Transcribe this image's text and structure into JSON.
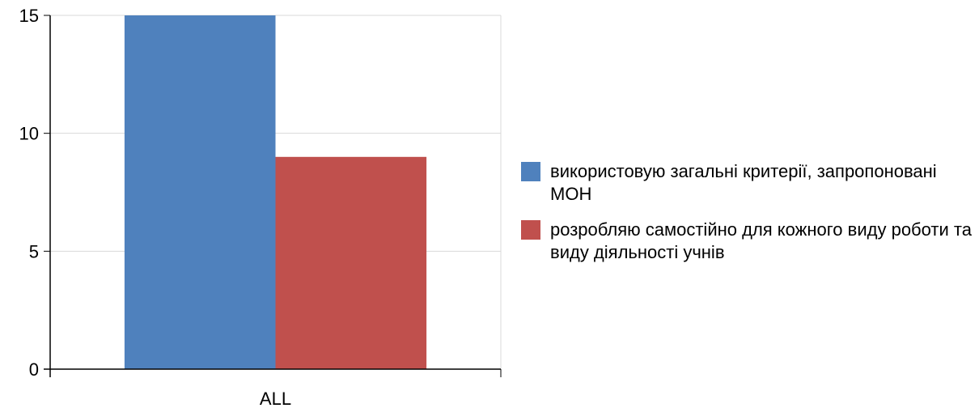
{
  "chart_data": {
    "type": "bar",
    "categories": [
      "ALL"
    ],
    "series": [
      {
        "name": "використовую загальні критерії, запропоновані МОН",
        "values": [
          15
        ],
        "color": "#4f81bd"
      },
      {
        "name": "розробляю самостійно для кожного виду роботи та виду діяльності учнів",
        "values": [
          9
        ],
        "color": "#c0504d"
      }
    ],
    "ylim": [
      0,
      15
    ],
    "yticks": [
      0,
      5,
      10,
      15
    ],
    "grid": true,
    "legend_position": "right",
    "title": "",
    "xlabel": "",
    "ylabel": ""
  }
}
